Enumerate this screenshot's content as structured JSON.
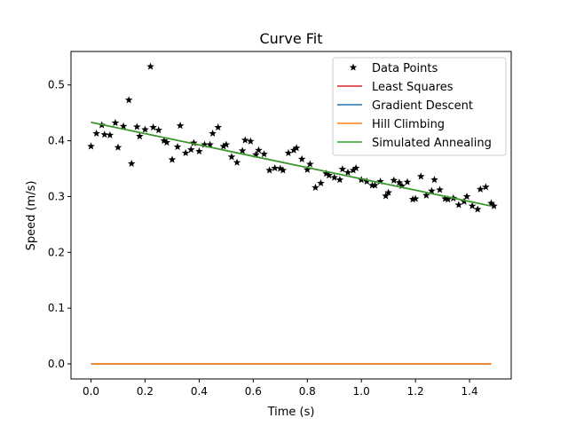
{
  "chart_data": {
    "type": "scatter",
    "title": "Curve Fit",
    "xlabel": "Time (s)",
    "ylabel": "Speed (m/s)",
    "xlim": [
      -0.074,
      1.554
    ],
    "ylim": [
      -0.027,
      0.56
    ],
    "xticks": [
      0.0,
      0.2,
      0.4,
      0.6,
      0.8,
      1.0,
      1.2,
      1.4
    ],
    "xtick_labels": [
      "0.0",
      "0.2",
      "0.4",
      "0.6",
      "0.8",
      "1.0",
      "1.2",
      "1.4"
    ],
    "yticks": [
      0.0,
      0.1,
      0.2,
      0.3,
      0.4,
      0.5
    ],
    "ytick_labels": [
      "0.0",
      "0.1",
      "0.2",
      "0.3",
      "0.4",
      "0.5"
    ],
    "grid": false,
    "legend_position": "top-right",
    "series": [
      {
        "name": "Data Points",
        "kind": "markers",
        "marker": "star",
        "color": "#000000",
        "points": [
          [
            0.0,
            0.39
          ],
          [
            0.02,
            0.413
          ],
          [
            0.04,
            0.428
          ],
          [
            0.05,
            0.411
          ],
          [
            0.07,
            0.41
          ],
          [
            0.09,
            0.432
          ],
          [
            0.1,
            0.388
          ],
          [
            0.12,
            0.426
          ],
          [
            0.14,
            0.473
          ],
          [
            0.15,
            0.359
          ],
          [
            0.17,
            0.425
          ],
          [
            0.18,
            0.408
          ],
          [
            0.2,
            0.42
          ],
          [
            0.22,
            0.533
          ],
          [
            0.23,
            0.424
          ],
          [
            0.25,
            0.419
          ],
          [
            0.27,
            0.4
          ],
          [
            0.28,
            0.397
          ],
          [
            0.3,
            0.366
          ],
          [
            0.32,
            0.389
          ],
          [
            0.33,
            0.427
          ],
          [
            0.35,
            0.378
          ],
          [
            0.37,
            0.384
          ],
          [
            0.38,
            0.396
          ],
          [
            0.4,
            0.381
          ],
          [
            0.42,
            0.393
          ],
          [
            0.44,
            0.393
          ],
          [
            0.45,
            0.413
          ],
          [
            0.47,
            0.424
          ],
          [
            0.49,
            0.39
          ],
          [
            0.5,
            0.393
          ],
          [
            0.52,
            0.371
          ],
          [
            0.54,
            0.361
          ],
          [
            0.56,
            0.382
          ],
          [
            0.57,
            0.401
          ],
          [
            0.59,
            0.399
          ],
          [
            0.61,
            0.375
          ],
          [
            0.62,
            0.383
          ],
          [
            0.64,
            0.376
          ],
          [
            0.66,
            0.347
          ],
          [
            0.68,
            0.351
          ],
          [
            0.7,
            0.35
          ],
          [
            0.71,
            0.347
          ],
          [
            0.73,
            0.378
          ],
          [
            0.75,
            0.383
          ],
          [
            0.76,
            0.387
          ],
          [
            0.78,
            0.367
          ],
          [
            0.8,
            0.348
          ],
          [
            0.81,
            0.358
          ],
          [
            0.83,
            0.316
          ],
          [
            0.85,
            0.324
          ],
          [
            0.87,
            0.341
          ],
          [
            0.88,
            0.338
          ],
          [
            0.9,
            0.334
          ],
          [
            0.92,
            0.33
          ],
          [
            0.93,
            0.349
          ],
          [
            0.95,
            0.343
          ],
          [
            0.97,
            0.347
          ],
          [
            0.98,
            0.351
          ],
          [
            1.0,
            0.33
          ],
          [
            1.02,
            0.327
          ],
          [
            1.04,
            0.32
          ],
          [
            1.05,
            0.32
          ],
          [
            1.07,
            0.327
          ],
          [
            1.09,
            0.301
          ],
          [
            1.1,
            0.307
          ],
          [
            1.12,
            0.329
          ],
          [
            1.14,
            0.325
          ],
          [
            1.15,
            0.319
          ],
          [
            1.17,
            0.326
          ],
          [
            1.19,
            0.295
          ],
          [
            1.2,
            0.296
          ],
          [
            1.22,
            0.336
          ],
          [
            1.24,
            0.302
          ],
          [
            1.26,
            0.31
          ],
          [
            1.27,
            0.33
          ],
          [
            1.29,
            0.312
          ],
          [
            1.31,
            0.296
          ],
          [
            1.32,
            0.295
          ],
          [
            1.34,
            0.297
          ],
          [
            1.36,
            0.285
          ],
          [
            1.38,
            0.291
          ],
          [
            1.39,
            0.3
          ],
          [
            1.41,
            0.283
          ],
          [
            1.43,
            0.277
          ],
          [
            1.44,
            0.313
          ],
          [
            1.46,
            0.317
          ],
          [
            1.48,
            0.288
          ],
          [
            1.49,
            0.283
          ]
        ]
      },
      {
        "name": "Least Squares",
        "kind": "line",
        "color": "#d62728",
        "x": [
          0.0,
          1.48
        ],
        "y": [
          0.433,
          0.283
        ]
      },
      {
        "name": "Gradient Descent",
        "kind": "line",
        "color": "#1f77b4",
        "x": [
          0.0,
          1.48
        ],
        "y": [
          0.0,
          0.0
        ]
      },
      {
        "name": "Hill Climbing",
        "kind": "line",
        "color": "#ff7f0e",
        "x": [
          0.0,
          1.48
        ],
        "y": [
          0.0,
          0.0
        ]
      },
      {
        "name": "Simulated Annealing",
        "kind": "line",
        "color": "#2ca02c",
        "x": [
          0.0,
          1.48
        ],
        "y": [
          0.433,
          0.283
        ]
      }
    ]
  }
}
